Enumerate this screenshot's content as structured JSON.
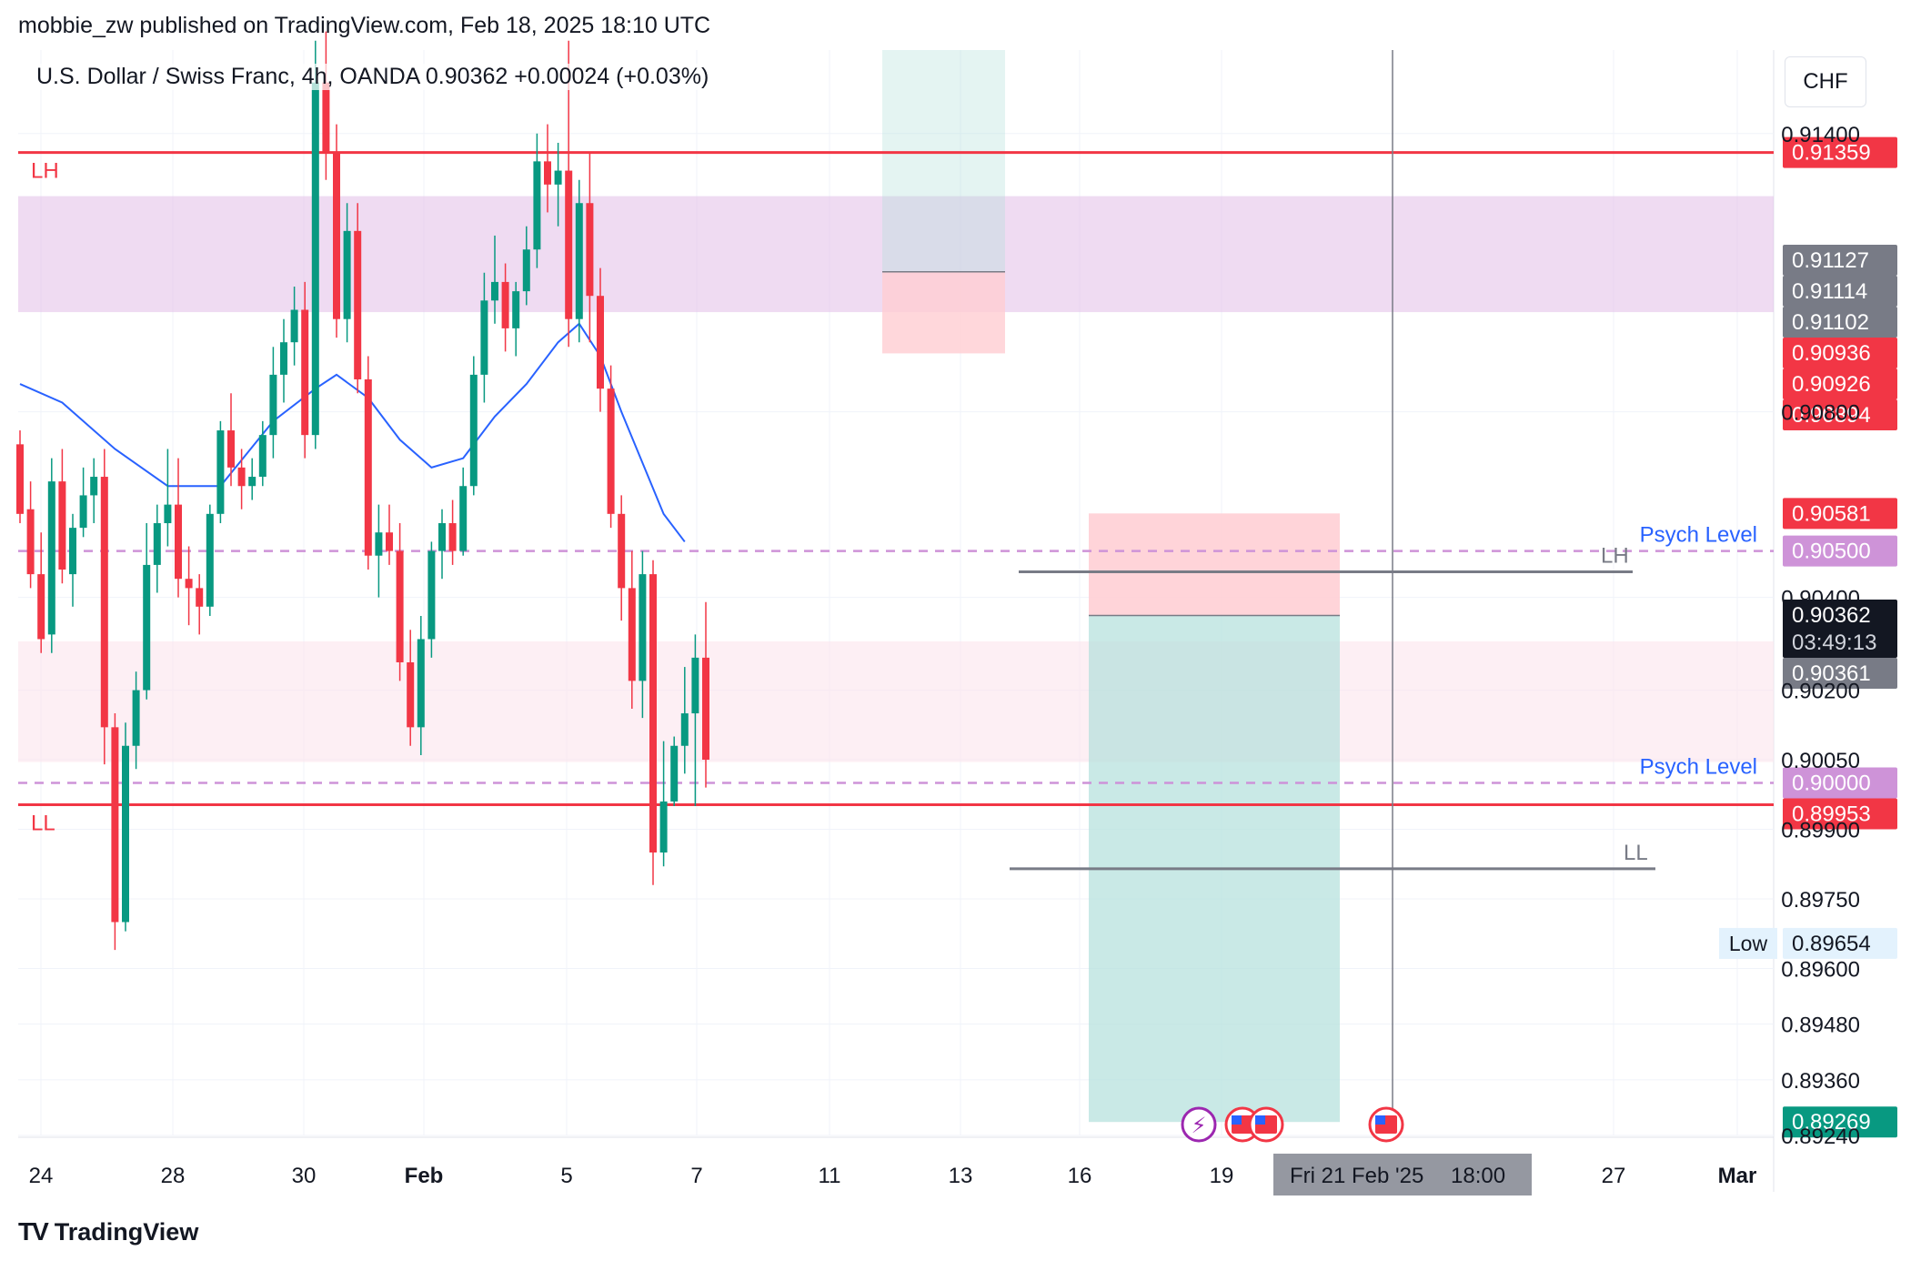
{
  "header": {
    "published": "mobbie_zw published on TradingView.com, Feb 18, 2025 18:10 UTC"
  },
  "symbol": {
    "title": "U.S. Dollar / Swiss Franc, 4h, OANDA",
    "price": "0.90362",
    "change": "+0.00024 (+0.03%)",
    "currency": "CHF"
  },
  "footer": {
    "brand": "TradingView",
    "logo_icon": "tradingview-logo-icon"
  },
  "colors": {
    "up": "#089981",
    "down": "#f23645",
    "ema": "#2962ff",
    "resistance_zone": "#e1bee7",
    "support_zone": "#fce4ec",
    "psych": "#ce93d8",
    "key_line": "#f23645",
    "structure_line": "#787b86",
    "target_fill": "#b2dfdb",
    "stop_fill": "#ffcdd2"
  },
  "chart_data": {
    "type": "candlestick",
    "timeframe": "4h",
    "x_ticks": [
      "24",
      "28",
      "30",
      "Feb",
      "5",
      "7",
      "11",
      "13",
      "16",
      "19",
      "27",
      "Mar"
    ],
    "crosshair_x_label": "Fri 21 Feb '25",
    "crosshair_x_time": "18:00",
    "y_ticks": [
      "0.91400",
      "0.90800",
      "0.90400",
      "0.90200",
      "0.90050",
      "0.89900",
      "0.89750",
      "0.89600",
      "0.89480",
      "0.89360",
      "0.89240"
    ],
    "y_range": [
      0.8924,
      0.9158
    ],
    "price_labels": [
      {
        "value": 0.91359,
        "text": "0.91359",
        "color": "#f23645"
      },
      {
        "value": 0.91127,
        "text": "0.91127",
        "color": "#787b86"
      },
      {
        "value": 0.91114,
        "text": "0.91114",
        "color": "#787b86"
      },
      {
        "value": 0.91102,
        "text": "0.91102",
        "color": "#787b86"
      },
      {
        "value": 0.90936,
        "text": "0.90936",
        "color": "#f23645"
      },
      {
        "value": 0.90926,
        "text": "0.90926",
        "color": "#f23645"
      },
      {
        "value": 0.90894,
        "text": "0.90894",
        "color": "#f23645"
      },
      {
        "value": 0.90581,
        "text": "0.90581",
        "color": "#f23645"
      },
      {
        "value": 0.905,
        "text": "0.90500",
        "color": "#ce93d8"
      },
      {
        "value": 0.90362,
        "text": "0.90362",
        "color": "#131722",
        "sub": "03:49:13"
      },
      {
        "value": 0.90361,
        "text": "0.90361",
        "color": "#787b86"
      },
      {
        "value": 0.9,
        "text": "0.90000",
        "color": "#ce93d8"
      },
      {
        "value": 0.89953,
        "text": "0.89953",
        "color": "#f23645"
      },
      {
        "value": 0.89654,
        "text": "0.89654",
        "color": "#e3f2fd",
        "prefix": "Low"
      },
      {
        "value": 0.89269,
        "text": "0.89269",
        "color": "#089981"
      }
    ],
    "annotations": {
      "lh_label": "LH",
      "ll_label": "LL",
      "psych_label": "Psych Level",
      "key_high": 0.91359,
      "key_low": 0.89953,
      "psych_high": 0.905,
      "psych_low": 0.9,
      "resistance_zone": [
        0.91015,
        0.91265
      ],
      "support_zone": [
        0.90045,
        0.90305
      ],
      "recent_lh": 0.90455,
      "recent_ll": 0.89815
    },
    "short_position": {
      "entry": 0.90361,
      "stop": 0.90581,
      "target": 0.89269
    },
    "candles": [
      [
        0.9073,
        0.9076,
        0.9056,
        0.9058
      ],
      [
        0.9059,
        0.9065,
        0.9042,
        0.9045
      ],
      [
        0.9045,
        0.9054,
        0.9028,
        0.9031
      ],
      [
        0.9032,
        0.907,
        0.9028,
        0.9065
      ],
      [
        0.9065,
        0.9072,
        0.9043,
        0.9046
      ],
      [
        0.9045,
        0.9058,
        0.9038,
        0.9055
      ],
      [
        0.9055,
        0.9068,
        0.9053,
        0.9062
      ],
      [
        0.9062,
        0.907,
        0.9056,
        0.9066
      ],
      [
        0.9066,
        0.9072,
        0.9004,
        0.9012
      ],
      [
        0.9012,
        0.9015,
        0.8964,
        0.897
      ],
      [
        0.897,
        0.9013,
        0.8968,
        0.9008
      ],
      [
        0.9008,
        0.9024,
        0.9003,
        0.902
      ],
      [
        0.902,
        0.9056,
        0.9018,
        0.9047
      ],
      [
        0.9047,
        0.906,
        0.9041,
        0.9056
      ],
      [
        0.9056,
        0.9072,
        0.9051,
        0.906
      ],
      [
        0.906,
        0.907,
        0.904,
        0.9044
      ],
      [
        0.9044,
        0.9051,
        0.9034,
        0.9042
      ],
      [
        0.9042,
        0.9045,
        0.9032,
        0.9038
      ],
      [
        0.9038,
        0.906,
        0.9036,
        0.9058
      ],
      [
        0.9058,
        0.9078,
        0.9056,
        0.9076
      ],
      [
        0.9076,
        0.9084,
        0.9064,
        0.9068
      ],
      [
        0.9068,
        0.9072,
        0.9059,
        0.9064
      ],
      [
        0.9064,
        0.907,
        0.9061,
        0.9066
      ],
      [
        0.9066,
        0.9078,
        0.9064,
        0.9075
      ],
      [
        0.9075,
        0.9094,
        0.907,
        0.9088
      ],
      [
        0.9088,
        0.91,
        0.9082,
        0.9095
      ],
      [
        0.9095,
        0.9107,
        0.909,
        0.9102
      ],
      [
        0.9102,
        0.9108,
        0.907,
        0.9075
      ],
      [
        0.9075,
        0.916,
        0.9072,
        0.9151
      ],
      [
        0.9151,
        0.9162,
        0.913,
        0.9136
      ],
      [
        0.9136,
        0.9142,
        0.9096,
        0.91
      ],
      [
        0.91,
        0.9125,
        0.9095,
        0.9119
      ],
      [
        0.9119,
        0.9125,
        0.9084,
        0.9087
      ],
      [
        0.9087,
        0.9092,
        0.9046,
        0.9049
      ],
      [
        0.9049,
        0.906,
        0.904,
        0.9054
      ],
      [
        0.9054,
        0.906,
        0.9047,
        0.905
      ],
      [
        0.905,
        0.9056,
        0.9022,
        0.9026
      ],
      [
        0.9026,
        0.9033,
        0.9008,
        0.9012
      ],
      [
        0.9012,
        0.9036,
        0.9006,
        0.9031
      ],
      [
        0.9031,
        0.9052,
        0.9027,
        0.905
      ],
      [
        0.905,
        0.9059,
        0.9044,
        0.9056
      ],
      [
        0.9056,
        0.9061,
        0.9047,
        0.905
      ],
      [
        0.905,
        0.9068,
        0.9049,
        0.9064
      ],
      [
        0.9064,
        0.9092,
        0.9062,
        0.9088
      ],
      [
        0.9088,
        0.911,
        0.9082,
        0.9104
      ],
      [
        0.9104,
        0.9118,
        0.9099,
        0.9108
      ],
      [
        0.9108,
        0.9112,
        0.9093,
        0.9098
      ],
      [
        0.9098,
        0.9108,
        0.9092,
        0.9106
      ],
      [
        0.9106,
        0.912,
        0.9103,
        0.9115
      ],
      [
        0.9115,
        0.914,
        0.9111,
        0.9134
      ],
      [
        0.9134,
        0.9142,
        0.9123,
        0.9129
      ],
      [
        0.9129,
        0.9138,
        0.912,
        0.9132
      ],
      [
        0.9132,
        0.916,
        0.9094,
        0.91
      ],
      [
        0.91,
        0.913,
        0.9095,
        0.9125
      ],
      [
        0.9125,
        0.9136,
        0.9095,
        0.9105
      ],
      [
        0.9105,
        0.9111,
        0.908,
        0.9085
      ],
      [
        0.9085,
        0.909,
        0.9055,
        0.9058
      ],
      [
        0.9058,
        0.9062,
        0.9035,
        0.9042
      ],
      [
        0.9042,
        0.905,
        0.9016,
        0.9022
      ],
      [
        0.9022,
        0.905,
        0.9014,
        0.9045
      ],
      [
        0.9045,
        0.9048,
        0.8978,
        0.8985
      ],
      [
        0.8985,
        0.9009,
        0.8982,
        0.8996
      ],
      [
        0.8996,
        0.901,
        0.8995,
        0.9008
      ],
      [
        0.9008,
        0.9025,
        0.9002,
        0.9015
      ],
      [
        0.9015,
        0.9032,
        0.8995,
        0.9027
      ],
      [
        0.9027,
        0.9039,
        0.8999,
        0.9005
      ]
    ],
    "ema": [
      [
        0,
        0.9086
      ],
      [
        4,
        0.9082
      ],
      [
        9,
        0.9072
      ],
      [
        14,
        0.9064
      ],
      [
        19,
        0.9064
      ],
      [
        24,
        0.9078
      ],
      [
        28,
        0.9085
      ],
      [
        30,
        0.9088
      ],
      [
        33,
        0.9083
      ],
      [
        36,
        0.9074
      ],
      [
        39,
        0.9068
      ],
      [
        42,
        0.907
      ],
      [
        45,
        0.9079
      ],
      [
        48,
        0.9086
      ],
      [
        51,
        0.9095
      ],
      [
        53,
        0.9099
      ],
      [
        55,
        0.9092
      ],
      [
        57,
        0.908
      ],
      [
        59,
        0.9069
      ],
      [
        61,
        0.9058
      ],
      [
        63,
        0.9052
      ]
    ]
  }
}
